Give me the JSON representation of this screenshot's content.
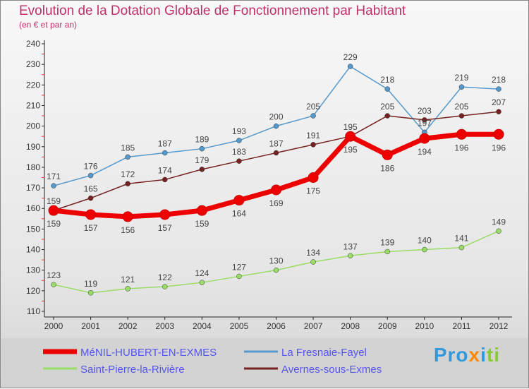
{
  "chart_data": {
    "type": "line",
    "title": "Evolution de la Dotation Globale de Fonctionnement par Habitant",
    "subtitle": "(en € et par an)",
    "xlabel": "",
    "ylabel": "",
    "x": [
      2000,
      2001,
      2002,
      2003,
      2004,
      2005,
      2006,
      2007,
      2008,
      2009,
      2010,
      2011,
      2012
    ],
    "ylim": [
      110,
      240
    ],
    "yticks": [
      110,
      120,
      130,
      140,
      150,
      160,
      170,
      180,
      190,
      200,
      210,
      220,
      230,
      240
    ],
    "legend_position": "bottom-left",
    "series": [
      {
        "name": "MéNIL-HUBERT-EN-EXMES",
        "color": "#ee0000",
        "values": [
          159,
          157,
          156,
          157,
          159,
          164,
          169,
          175,
          195,
          186,
          194,
          196,
          196
        ]
      },
      {
        "name": "La Fresnaie-Fayel",
        "color": "#5599cc",
        "values": [
          171,
          176,
          185,
          187,
          189,
          193,
          200,
          205,
          229,
          218,
          197,
          219,
          218
        ]
      },
      {
        "name": "Saint-Pierre-la-Rivière",
        "color": "#99dd66",
        "values": [
          123,
          119,
          121,
          122,
          124,
          127,
          130,
          134,
          137,
          139,
          140,
          141,
          149
        ]
      },
      {
        "name": "Avernes-sous-Exmes",
        "color": "#772222",
        "values": [
          159,
          165,
          172,
          174,
          179,
          183,
          187,
          191,
          195,
          205,
          203,
          205,
          207
        ]
      }
    ]
  },
  "logo": "Proxiti"
}
